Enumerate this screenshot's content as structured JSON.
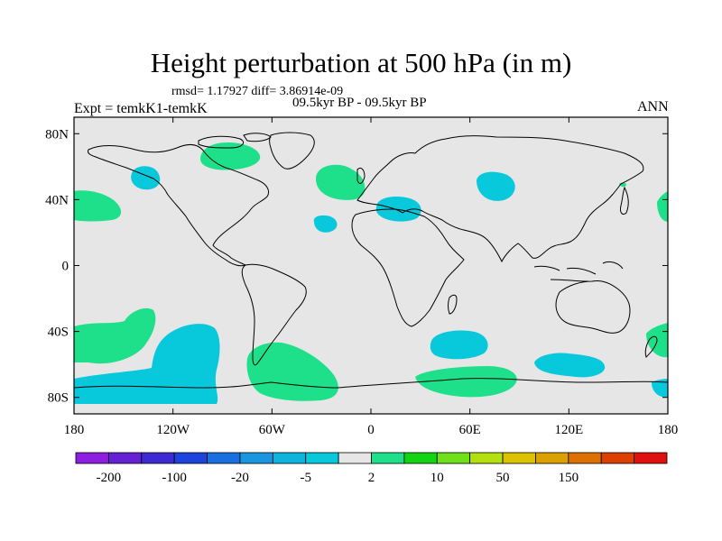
{
  "title": "Height perturbation at 500 hPa (in m)",
  "stats_line": "rmsd= 1.17927 diff= 3.86914e-09",
  "time_line": "09.5kyr BP - 09.5kyr BP",
  "expt_label": "Expt = temkK1-temkK",
  "season": "ANN",
  "lat_ticks": [
    {
      "label": "80N",
      "lat": 80
    },
    {
      "label": "40N",
      "lat": 40
    },
    {
      "label": "0",
      "lat": 0
    },
    {
      "label": "40S",
      "lat": -40
    },
    {
      "label": "80S",
      "lat": -80
    }
  ],
  "lon_ticks": [
    {
      "label": "180",
      "lon": -180
    },
    {
      "label": "120W",
      "lon": -120
    },
    {
      "label": "60W",
      "lon": -60
    },
    {
      "label": "0",
      "lon": 0
    },
    {
      "label": "60E",
      "lon": 60
    },
    {
      "label": "120E",
      "lon": 120
    },
    {
      "label": "180",
      "lon": 180
    }
  ],
  "colorbar": {
    "colors": [
      "#8f1fe0",
      "#6422d4",
      "#3c2bd2",
      "#1b44dd",
      "#1a6fe0",
      "#1a96e0",
      "#0fb4de",
      "#08c8dc",
      "#e6e6e6",
      "#1fe08a",
      "#12d412",
      "#6fe01a",
      "#b4e010",
      "#dcc200",
      "#dca000",
      "#dc7000",
      "#dc4000",
      "#e01010"
    ],
    "labels": [
      {
        "text": "-200",
        "index": 1
      },
      {
        "text": "-100",
        "index": 3
      },
      {
        "text": "-20",
        "index": 5
      },
      {
        "text": "-5",
        "index": 7
      },
      {
        "text": "2",
        "index": 9
      },
      {
        "text": "10",
        "index": 11
      },
      {
        "text": "50",
        "index": 13
      },
      {
        "text": "150",
        "index": 15
      }
    ]
  }
}
